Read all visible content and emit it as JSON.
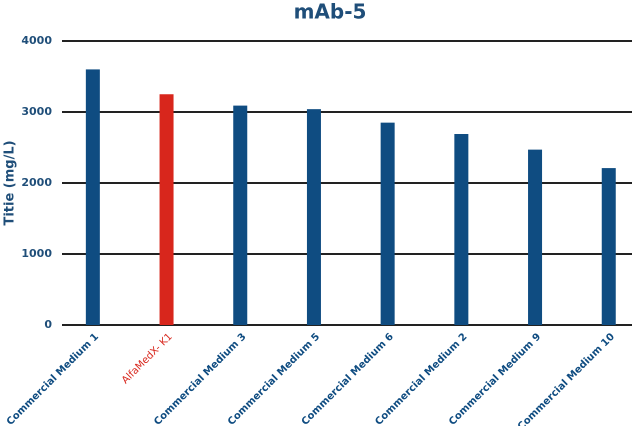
{
  "chart_data": {
    "type": "bar",
    "title": "mAb-5",
    "y_label": "Titie (mg/L)",
    "categories": [
      "Commercial Medium 1",
      "AlfaMedX- K1",
      "Commercial Medium 3",
      "Commercial Medium 5",
      "Commercial Medium 6",
      "Commercial Medium 2",
      "Commercial Medium 9",
      "Commercial Medium 10"
    ],
    "values": [
      3600,
      3250,
      3090,
      3040,
      2850,
      2690,
      2470,
      2210
    ],
    "colors": [
      "#0f4c81",
      "#d8261c",
      "#0f4c81",
      "#0f4c81",
      "#0f4c81",
      "#0f4c81",
      "#0f4c81",
      "#0f4c81"
    ],
    "ylim": [
      0,
      4000
    ],
    "yticks": [
      0,
      1000,
      2000,
      3000,
      4000
    ],
    "grid": true
  }
}
